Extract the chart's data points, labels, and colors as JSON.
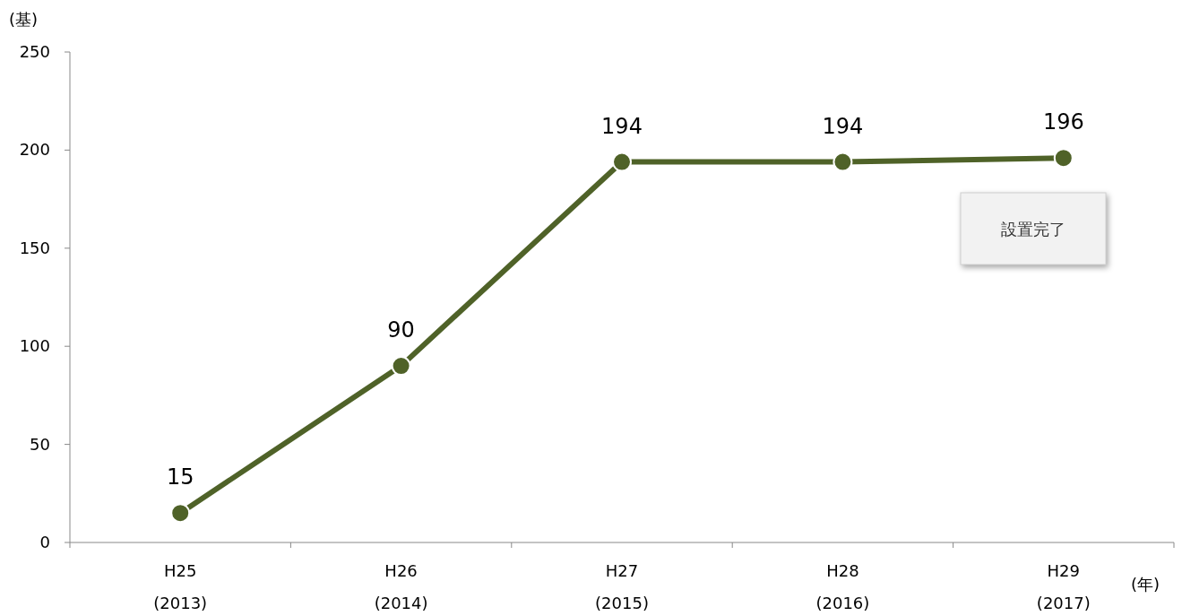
{
  "chart_data": {
    "type": "line",
    "ylabel": "(基)",
    "xlabel": "(年)",
    "categories": [
      "H25\n(2013)",
      "H26\n(2014)",
      "H27\n(2015)",
      "H28\n(2016)",
      "H29\n(2017)"
    ],
    "series": [
      {
        "color": "#4f6228",
        "values": [
          15,
          90,
          194,
          194,
          196
        ]
      }
    ],
    "ylim": [
      0,
      250
    ],
    "yticks": [
      0,
      50,
      100,
      150,
      200,
      250
    ],
    "data_labels": true,
    "marker": "circle",
    "line_style": "solid",
    "grid": false,
    "annotations": [
      "設置完了"
    ]
  }
}
